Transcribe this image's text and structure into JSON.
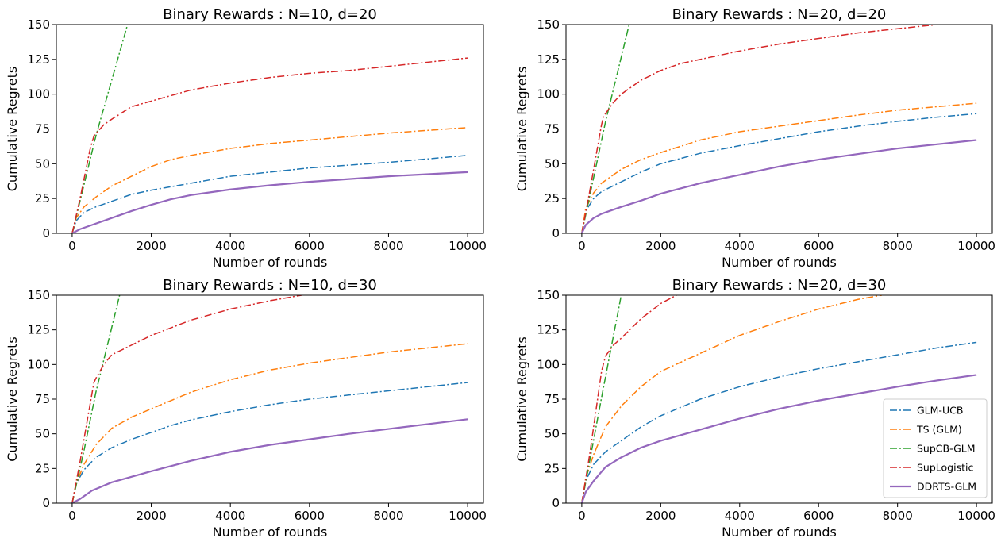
{
  "chart_data": [
    {
      "type": "line",
      "title": "Binary Rewards : N=10, d=20",
      "xlabel": "Number of rounds",
      "ylabel": "Cumulative Regrets",
      "xlim": [
        -400,
        10400
      ],
      "ylim": [
        0,
        150
      ],
      "xticks": [
        0,
        2000,
        4000,
        6000,
        8000,
        10000
      ],
      "yticks": [
        0,
        25,
        50,
        75,
        100,
        125,
        150
      ],
      "grid": false,
      "series": [
        {
          "name": "GLM-UCB",
          "color": "#1f77b4",
          "style": "dashdot",
          "x": [
            0,
            100,
            300,
            600,
            1000,
            1500,
            2000,
            3000,
            4000,
            5000,
            6000,
            7000,
            8000,
            9000,
            10000
          ],
          "y": [
            0,
            9,
            15,
            19,
            23,
            28,
            31,
            36,
            41,
            44,
            47,
            49,
            51,
            53.5,
            56
          ]
        },
        {
          "name": "TS (GLM)",
          "color": "#ff7f0e",
          "style": "dashdot",
          "x": [
            0,
            100,
            300,
            600,
            1000,
            1500,
            2000,
            2500,
            3000,
            4000,
            5000,
            6000,
            7000,
            8000,
            9000,
            10000
          ],
          "y": [
            0,
            11,
            19,
            26,
            34,
            41,
            48,
            53,
            56,
            61,
            64.5,
            67,
            69.5,
            72,
            74,
            76
          ]
        },
        {
          "name": "SupCB-GLM",
          "color": "#2ca02c",
          "style": "dashdot",
          "x": [
            0,
            300,
            600,
            1000,
            1400
          ],
          "y": [
            0,
            35,
            70,
            110,
            150
          ]
        },
        {
          "name": "SupLogistic",
          "color": "#d62728",
          "style": "dashdot",
          "x": [
            0,
            200,
            450,
            550,
            800,
            1000,
            1500,
            2000,
            2500,
            3000,
            4000,
            5000,
            6000,
            7000,
            8000,
            9000,
            10000
          ],
          "y": [
            0,
            25,
            60,
            70,
            78,
            82,
            91,
            95,
            99,
            103,
            108,
            112,
            115,
            117,
            120,
            123,
            126
          ]
        },
        {
          "name": "DDRTS-GLM",
          "color": "#9467bd",
          "style": "solid",
          "x": [
            0,
            200,
            500,
            1000,
            1500,
            2000,
            2500,
            3000,
            4000,
            5000,
            6000,
            7000,
            8000,
            9000,
            10000
          ],
          "y": [
            0,
            3,
            6,
            11,
            16,
            20.5,
            24.5,
            27.5,
            31.5,
            34.5,
            37,
            39,
            41,
            42.5,
            44
          ]
        }
      ]
    },
    {
      "type": "line",
      "title": "Binary Rewards : N=20, d=20",
      "xlabel": "Number of rounds",
      "ylabel": "Cumulative Regrets",
      "xlim": [
        -400,
        10400
      ],
      "ylim": [
        0,
        150
      ],
      "xticks": [
        0,
        2000,
        4000,
        6000,
        8000,
        10000
      ],
      "yticks": [
        0,
        25,
        50,
        75,
        100,
        125,
        150
      ],
      "grid": false,
      "series": [
        {
          "name": "GLM-UCB",
          "color": "#1f77b4",
          "style": "dashdot",
          "x": [
            0,
            100,
            300,
            500,
            1000,
            1500,
            2000,
            3000,
            4000,
            5000,
            6000,
            7000,
            8000,
            9000,
            10000
          ],
          "y": [
            0,
            16,
            25,
            30,
            37,
            44,
            50,
            57.5,
            63,
            68,
            73,
            77,
            80.5,
            83.5,
            86
          ]
        },
        {
          "name": "TS (GLM)",
          "color": "#ff7f0e",
          "style": "dashdot",
          "x": [
            0,
            100,
            300,
            500,
            1000,
            1500,
            2000,
            3000,
            4000,
            5000,
            6000,
            7000,
            8000,
            9000,
            10000
          ],
          "y": [
            0,
            18,
            29,
            36,
            46,
            53,
            58,
            67,
            73,
            77,
            81,
            85,
            88.5,
            91,
            93.5
          ]
        },
        {
          "name": "SupCB-GLM",
          "color": "#2ca02c",
          "style": "dashdot",
          "x": [
            0,
            300,
            600,
            900,
            1200
          ],
          "y": [
            0,
            40,
            80,
            115,
            150
          ]
        },
        {
          "name": "SupLogistic",
          "color": "#d62728",
          "style": "dashdot",
          "x": [
            0,
            200,
            500,
            550,
            800,
            1000,
            1500,
            2000,
            2500,
            3000,
            4000,
            5000,
            6000,
            7000,
            8000,
            9000
          ],
          "y": [
            0,
            30,
            78,
            84,
            94,
            100,
            110,
            117,
            122,
            125,
            131,
            136,
            140,
            144,
            147,
            150
          ]
        },
        {
          "name": "DDRTS-GLM",
          "color": "#9467bd",
          "style": "solid",
          "x": [
            0,
            100,
            300,
            500,
            1000,
            1500,
            2000,
            3000,
            4000,
            5000,
            6000,
            7000,
            8000,
            9000,
            10000
          ],
          "y": [
            0,
            6,
            11,
            14,
            19,
            23.5,
            28.5,
            36,
            42,
            48,
            53,
            57,
            61,
            64,
            67
          ]
        }
      ]
    },
    {
      "type": "line",
      "title": "Binary Rewards : N=10, d=30",
      "xlabel": "Number of rounds",
      "ylabel": "Cumulative Regrets",
      "xlim": [
        -400,
        10400
      ],
      "ylim": [
        0,
        150
      ],
      "xticks": [
        0,
        2000,
        4000,
        6000,
        8000,
        10000
      ],
      "yticks": [
        0,
        25,
        50,
        75,
        100,
        125,
        150
      ],
      "grid": false,
      "series": [
        {
          "name": "GLM-UCB",
          "color": "#1f77b4",
          "style": "dashdot",
          "x": [
            0,
            100,
            300,
            600,
            1000,
            1500,
            2000,
            2500,
            3000,
            4000,
            5000,
            6000,
            7000,
            8000,
            9000,
            10000
          ],
          "y": [
            0,
            14,
            24,
            33,
            40,
            46,
            51,
            56,
            60,
            66,
            71,
            75,
            78,
            81,
            84,
            87
          ]
        },
        {
          "name": "TS (GLM)",
          "color": "#ff7f0e",
          "style": "dashdot",
          "x": [
            0,
            100,
            300,
            600,
            1000,
            1500,
            2000,
            3000,
            4000,
            5000,
            6000,
            7000,
            8000,
            9000,
            10000
          ],
          "y": [
            0,
            14,
            28,
            42,
            54,
            62,
            68,
            80,
            89,
            96,
            101,
            105,
            109,
            112,
            115
          ]
        },
        {
          "name": "SupCB-GLM",
          "color": "#2ca02c",
          "style": "dashdot",
          "x": [
            0,
            300,
            600,
            900,
            1200
          ],
          "y": [
            0,
            38,
            80,
            115,
            150
          ]
        },
        {
          "name": "SupLogistic",
          "color": "#d62728",
          "style": "dashdot",
          "x": [
            0,
            200,
            550,
            600,
            800,
            1000,
            1500,
            2000,
            3000,
            4000,
            5000,
            5800
          ],
          "y": [
            0,
            30,
            87,
            90,
            100,
            107,
            114,
            121,
            132,
            140,
            146,
            150
          ]
        },
        {
          "name": "DDRTS-GLM",
          "color": "#9467bd",
          "style": "solid",
          "x": [
            0,
            200,
            500,
            1000,
            1500,
            2000,
            3000,
            4000,
            5000,
            6000,
            7000,
            8000,
            9000,
            10000
          ],
          "y": [
            0,
            3,
            9,
            15,
            19,
            23,
            30.5,
            37,
            42,
            46,
            50,
            53.5,
            57,
            60.5
          ]
        }
      ]
    },
    {
      "type": "line",
      "title": "Binary Rewards : N=20, d=30",
      "xlabel": "Number of rounds",
      "ylabel": "Cumulative Regrets",
      "xlim": [
        -400,
        10400
      ],
      "ylim": [
        0,
        150
      ],
      "xticks": [
        0,
        2000,
        4000,
        6000,
        8000,
        10000
      ],
      "yticks": [
        0,
        25,
        50,
        75,
        100,
        125,
        150
      ],
      "grid": false,
      "legend": "lower right",
      "series": [
        {
          "name": "GLM-UCB",
          "color": "#1f77b4",
          "style": "dashdot",
          "x": [
            0,
            100,
            300,
            600,
            1000,
            1500,
            2000,
            3000,
            4000,
            5000,
            6000,
            7000,
            8000,
            9000,
            10000
          ],
          "y": [
            0,
            16,
            28,
            37,
            45,
            55,
            63,
            75,
            84,
            91,
            97,
            102,
            107,
            112,
            116
          ]
        },
        {
          "name": "TS (GLM)",
          "color": "#ff7f0e",
          "style": "dashdot",
          "x": [
            0,
            100,
            300,
            600,
            1000,
            1500,
            2000,
            3000,
            4000,
            5000,
            6000,
            7000,
            7600
          ],
          "y": [
            0,
            18,
            35,
            55,
            70,
            84,
            95,
            108,
            121,
            131,
            140,
            147,
            150
          ]
        },
        {
          "name": "SupCB-GLM",
          "color": "#2ca02c",
          "style": "dashdot",
          "x": [
            0,
            250,
            500,
            750,
            1000
          ],
          "y": [
            0,
            38,
            76,
            113,
            150
          ]
        },
        {
          "name": "SupLogistic",
          "color": "#d62728",
          "style": "dashdot",
          "x": [
            0,
            200,
            500,
            600,
            800,
            1000,
            1500,
            2000,
            2400
          ],
          "y": [
            0,
            35,
            95,
            106,
            114,
            119,
            133,
            144,
            150
          ]
        },
        {
          "name": "DDRTS-GLM",
          "color": "#9467bd",
          "style": "solid",
          "x": [
            0,
            100,
            300,
            600,
            1000,
            1500,
            2000,
            3000,
            4000,
            5000,
            6000,
            7000,
            8000,
            9000,
            10000
          ],
          "y": [
            0,
            8,
            16,
            26,
            33,
            40,
            45,
            53,
            61,
            68,
            74,
            79,
            84,
            88.5,
            92.5
          ]
        }
      ]
    }
  ]
}
